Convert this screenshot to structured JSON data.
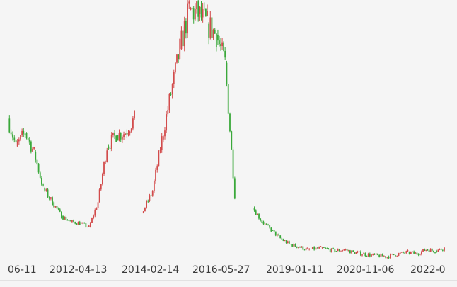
{
  "chart_data": {
    "type": "line",
    "style": "candlestick",
    "up_color": "#d24b4b",
    "down_color": "#3aa83a",
    "background": "#f5f5f5",
    "x_tick_labels": [
      "06-11",
      "2012-04-13",
      "2014-02-14",
      "2016-05-27",
      "2019-01-11",
      "2020-11-06",
      "2022-0"
    ],
    "x": [
      "2010-06-11",
      "2010-09-01",
      "2010-12-01",
      "2011-03-01",
      "2011-06-01",
      "2011-09-01",
      "2011-12-01",
      "2012-03-01",
      "2012-06-01",
      "2012-09-01",
      "2012-12-01",
      "2013-03-01",
      "2013-06-01",
      "2013-09-01",
      "2013-12-01",
      "2014-02-14",
      "2014-06-01",
      "2014-09-01",
      "2014-12-01",
      "2015-03-01",
      "2015-06-01",
      "2015-09-01",
      "2015-12-01",
      "2016-03-01",
      "2016-05-27",
      "2016-09-01",
      "2016-12-01",
      "2017-03-01",
      "2017-06-01",
      "2017-09-01",
      "2017-12-01",
      "2018-03-01",
      "2018-06-01",
      "2018-09-01",
      "2019-01-11",
      "2019-06-01",
      "2019-09-01",
      "2019-12-01",
      "2020-03-01",
      "2020-06-01",
      "2020-11-06",
      "2021-03-01",
      "2021-06-01",
      "2021-09-01",
      "2021-12-01",
      "2022-03-01",
      "2022-06-01"
    ],
    "y": [
      100,
      80,
      90,
      76,
      50,
      40,
      30,
      26,
      25,
      22,
      40,
      80,
      88,
      90,
      100,
      32,
      48,
      85,
      118,
      150,
      178,
      175,
      168,
      160,
      140,
      45,
      40,
      36,
      26,
      20,
      14,
      10,
      8,
      6,
      7,
      5,
      6,
      4,
      3,
      2,
      1,
      3,
      4,
      3,
      6,
      5,
      7
    ],
    "gaps_after": [
      14,
      25,
      26
    ]
  }
}
